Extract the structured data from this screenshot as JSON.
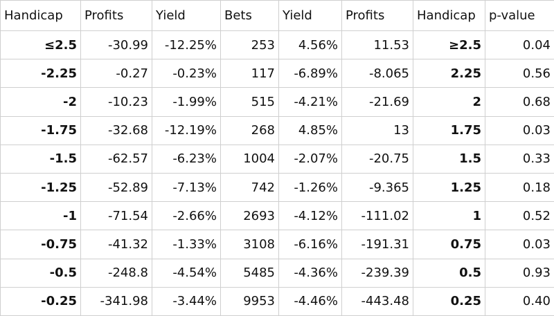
{
  "table": {
    "headers": [
      "Handicap",
      "Profits",
      "Yield",
      "Bets",
      "Yield",
      "Profits",
      "Handicap",
      "p-value"
    ],
    "rows": [
      [
        "≤2.5",
        "-30.99",
        "-12.25%",
        "253",
        "4.56%",
        "11.53",
        "≥2.5",
        "0.04"
      ],
      [
        "-2.25",
        "-0.27",
        "-0.23%",
        "117",
        "-6.89%",
        "-8.065",
        "2.25",
        "0.56"
      ],
      [
        "-2",
        "-10.23",
        "-1.99%",
        "515",
        "-4.21%",
        "-21.69",
        "2",
        "0.68"
      ],
      [
        "-1.75",
        "-32.68",
        "-12.19%",
        "268",
        "4.85%",
        "13",
        "1.75",
        "0.03"
      ],
      [
        "-1.5",
        "-62.57",
        "-6.23%",
        "1004",
        "-2.07%",
        "-20.75",
        "1.5",
        "0.33"
      ],
      [
        "-1.25",
        "-52.89",
        "-7.13%",
        "742",
        "-1.26%",
        "-9.365",
        "1.25",
        "0.18"
      ],
      [
        "-1",
        "-71.54",
        "-2.66%",
        "2693",
        "-4.12%",
        "-111.02",
        "1",
        "0.52"
      ],
      [
        "-0.75",
        "-41.32",
        "-1.33%",
        "3108",
        "-6.16%",
        "-191.31",
        "0.75",
        "0.03"
      ],
      [
        "-0.5",
        "-248.8",
        "-4.54%",
        "5485",
        "-4.36%",
        "-239.39",
        "0.5",
        "0.93"
      ],
      [
        "-0.25",
        "-341.98",
        "-3.44%",
        "9953",
        "-4.46%",
        "-443.48",
        "0.25",
        "0.40"
      ]
    ]
  }
}
